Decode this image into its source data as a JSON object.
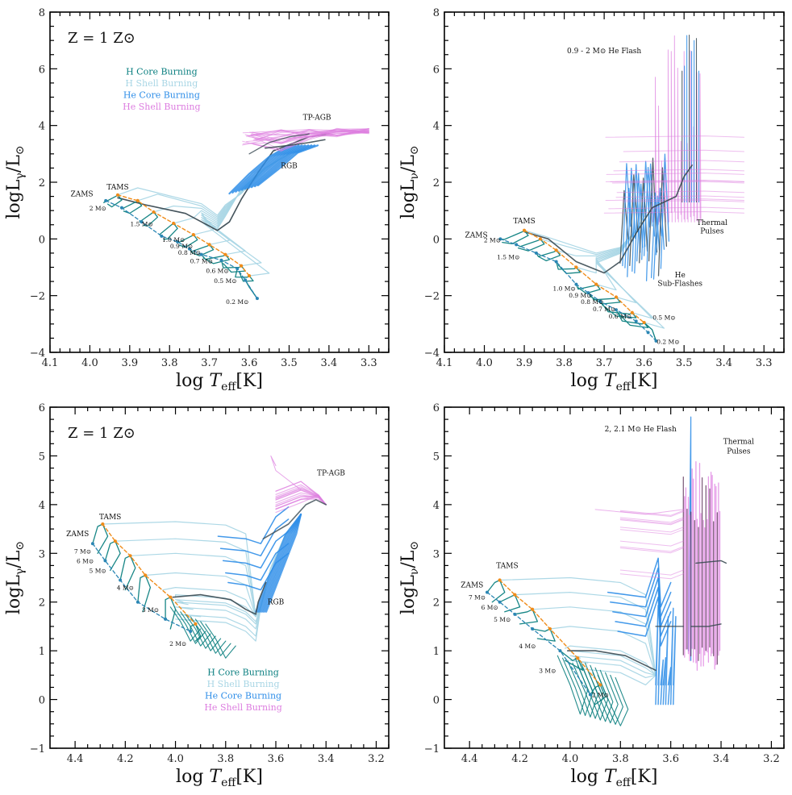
{
  "colors": {
    "h_core": "#0b7f80",
    "h_shell": "#a9d6e5",
    "he_core": "#2f8ee8",
    "he_shell": "#dd7ee0",
    "tams": "#f08c1a",
    "zams": "#2b86b4",
    "dark": "#3a4a52",
    "tpagb_dark": "#5a2d55"
  },
  "legend_items": [
    {
      "text": "H Core Burning",
      "color": "#0b7f80"
    },
    {
      "text": "H Shell Burning",
      "color": "#a9d6e5"
    },
    {
      "text": "He Core Burning",
      "color": "#2f8ee8"
    },
    {
      "text": "He Shell Burning",
      "color": "#dd7ee0"
    }
  ],
  "chart_data": [
    {
      "id": "tl",
      "type": "line",
      "xlabel": "log T_eff [K]",
      "ylabel": "log L_γ / L_⊙",
      "xlim": [
        4.1,
        3.25
      ],
      "ylim": [
        -4,
        8
      ],
      "xticks": [
        "4.1",
        "4.0",
        "3.9",
        "3.8",
        "3.7",
        "3.6",
        "3.5",
        "3.4",
        "3.3"
      ],
      "xtick_values": [
        4.1,
        4.0,
        3.9,
        3.8,
        3.7,
        3.6,
        3.5,
        3.4,
        3.3
      ],
      "yticks": [
        "−4",
        "−2",
        "0",
        "2",
        "4",
        "6",
        "8"
      ],
      "ytick_values": [
        -4,
        -2,
        0,
        2,
        4,
        6,
        8
      ],
      "metallicity": "Z = 1 Z⊙",
      "legend_position": [
        3.82,
        5.8
      ],
      "zams": [
        [
          3.96,
          1.35
        ],
        [
          3.92,
          1.1
        ],
        [
          3.87,
          0.6
        ],
        [
          3.82,
          0.1
        ],
        [
          3.78,
          -0.1
        ],
        [
          3.75,
          -0.35
        ],
        [
          3.72,
          -0.55
        ],
        [
          3.67,
          -0.75
        ],
        [
          3.63,
          -1.05
        ],
        [
          3.61,
          -1.45
        ],
        [
          3.58,
          -2.1
        ]
      ],
      "tams": [
        [
          3.93,
          1.55
        ],
        [
          3.88,
          1.35
        ],
        [
          3.84,
          0.95
        ],
        [
          3.79,
          0.55
        ],
        [
          3.74,
          0.15
        ],
        [
          3.7,
          -0.2
        ],
        [
          3.66,
          -0.55
        ],
        [
          3.62,
          -0.95
        ],
        [
          3.6,
          -1.3
        ]
      ],
      "annotations": [
        {
          "text": "ZAMS",
          "x": 4.02,
          "y": 1.5,
          "color": "#2b86b4",
          "size": 9
        },
        {
          "text": "TAMS",
          "x": 3.93,
          "y": 1.75,
          "color": "#f08c1a",
          "size": 9
        },
        {
          "text": "TP-AGB",
          "x": 3.43,
          "y": 4.2,
          "color": "#111",
          "size": 9
        },
        {
          "text": "RGB",
          "x": 3.5,
          "y": 2.5,
          "color": "#111",
          "size": 9
        }
      ],
      "masses": [
        {
          "text": "2 M⊙",
          "x": 3.98,
          "y": 1.0
        },
        {
          "text": "1.5 M⊙",
          "x": 3.87,
          "y": 0.45
        },
        {
          "text": "1.0 M⊙",
          "x": 3.79,
          "y": -0.1
        },
        {
          "text": "0.9 M⊙",
          "x": 3.77,
          "y": -0.33
        },
        {
          "text": "0.8 M⊙",
          "x": 3.75,
          "y": -0.56
        },
        {
          "text": "0.7 M⊙",
          "x": 3.72,
          "y": -0.86
        },
        {
          "text": "0.6 M⊙",
          "x": 3.68,
          "y": -1.2
        },
        {
          "text": "0.5 M⊙",
          "x": 3.66,
          "y": -1.55
        },
        {
          "text": "0.2 M⊙",
          "x": 3.63,
          "y": -2.3
        }
      ]
    },
    {
      "id": "tr",
      "type": "line",
      "xlabel": "log T_eff [K]",
      "ylabel": "log L_ν / L_⊙",
      "xlim": [
        4.1,
        3.25
      ],
      "ylim": [
        -4,
        8
      ],
      "xticks": [
        "4.1",
        "4.0",
        "3.9",
        "3.8",
        "3.7",
        "3.6",
        "3.5",
        "3.4",
        "3.3"
      ],
      "xtick_values": [
        4.1,
        4.0,
        3.9,
        3.8,
        3.7,
        3.6,
        3.5,
        3.4,
        3.3
      ],
      "yticks": [
        "−4",
        "−2",
        "0",
        "2",
        "4",
        "6",
        "8"
      ],
      "ytick_values": [
        -4,
        -2,
        0,
        2,
        4,
        6,
        8
      ],
      "zams": [
        [
          3.96,
          0.0
        ],
        [
          3.92,
          -0.2
        ],
        [
          3.87,
          -0.5
        ],
        [
          3.82,
          -0.8
        ],
        [
          3.77,
          -1.6
        ],
        [
          3.74,
          -1.9
        ],
        [
          3.71,
          -2.2
        ],
        [
          3.67,
          -2.5
        ],
        [
          3.62,
          -2.9
        ],
        [
          3.59,
          -3.3
        ],
        [
          3.57,
          -3.6
        ]
      ],
      "tams": [
        [
          3.9,
          0.3
        ],
        [
          3.86,
          0.0
        ],
        [
          3.82,
          -0.4
        ],
        [
          3.77,
          -1.0
        ],
        [
          3.72,
          -1.6
        ],
        [
          3.67,
          -2.05
        ],
        [
          3.63,
          -2.6
        ],
        [
          3.6,
          -2.95
        ]
      ],
      "annotations": [
        {
          "text": "ZAMS",
          "x": 4.02,
          "y": 0.05,
          "color": "#2b86b4",
          "size": 9
        },
        {
          "text": "TAMS",
          "x": 3.9,
          "y": 0.55,
          "color": "#f08c1a",
          "size": 9
        },
        {
          "text": "0.9 - 2 M⊙ He Flash",
          "x": 3.7,
          "y": 6.55,
          "color": "#111",
          "size": 8
        },
        {
          "text": "Thermal",
          "x": 3.43,
          "y": 0.5,
          "color": "#111",
          "size": 8
        },
        {
          "text": "Pulses",
          "x": 3.43,
          "y": 0.2,
          "color": "#111",
          "size": 8
        },
        {
          "text": "He",
          "x": 3.51,
          "y": -1.35,
          "color": "#111",
          "size": 8
        },
        {
          "text": "Sub-Flashes",
          "x": 3.51,
          "y": -1.65,
          "color": "#111",
          "size": 8
        }
      ],
      "masses": [
        {
          "text": "2 M⊙",
          "x": 3.98,
          "y": -0.12
        },
        {
          "text": "1.5 M⊙",
          "x": 3.94,
          "y": -0.72
        },
        {
          "text": "1.0 M⊙",
          "x": 3.8,
          "y": -1.83
        },
        {
          "text": "0.9 M⊙",
          "x": 3.76,
          "y": -2.07
        },
        {
          "text": "0.8 M⊙",
          "x": 3.73,
          "y": -2.3
        },
        {
          "text": "0.7 M⊙",
          "x": 3.7,
          "y": -2.55
        },
        {
          "text": "0.6 M⊙",
          "x": 3.66,
          "y": -2.8
        },
        {
          "text": "0.5 M⊙",
          "x": 3.55,
          "y": -2.85
        },
        {
          "text": "0.2 M⊙",
          "x": 3.54,
          "y": -3.7
        }
      ]
    },
    {
      "id": "bl",
      "type": "line",
      "xlabel": "log T_eff [K]",
      "ylabel": "log L_γ / L_⊙",
      "xlim": [
        4.5,
        3.15
      ],
      "ylim": [
        -1,
        6
      ],
      "xticks": [
        "4.4",
        "4.2",
        "4.0",
        "3.8",
        "3.6",
        "3.4",
        "3.2"
      ],
      "xtick_values": [
        4.4,
        4.2,
        4.0,
        3.8,
        3.6,
        3.4,
        3.2
      ],
      "yticks": [
        "−1",
        "0",
        "1",
        "2",
        "3",
        "4",
        "5",
        "6"
      ],
      "ytick_values": [
        -1,
        0,
        1,
        2,
        3,
        4,
        5,
        6
      ],
      "metallicity": "Z = 1 Z⊙",
      "legend_position": [
        3.73,
        0.5
      ],
      "zams": [
        [
          4.33,
          3.2
        ],
        [
          4.28,
          2.85
        ],
        [
          4.22,
          2.45
        ],
        [
          4.15,
          2.0
        ],
        [
          4.04,
          1.65
        ],
        [
          3.94,
          1.4
        ]
      ],
      "tams": [
        [
          4.29,
          3.6
        ],
        [
          4.24,
          3.25
        ],
        [
          4.18,
          2.95
        ],
        [
          4.12,
          2.55
        ],
        [
          4.02,
          2.1
        ],
        [
          3.92,
          1.55
        ]
      ],
      "annotations": [
        {
          "text": "ZAMS",
          "x": 4.39,
          "y": 3.35,
          "color": "#2b86b4",
          "size": 9
        },
        {
          "text": "TAMS",
          "x": 4.26,
          "y": 3.7,
          "color": "#f08c1a",
          "size": 9
        },
        {
          "text": "TP-AGB",
          "x": 3.38,
          "y": 4.6,
          "color": "#111",
          "size": 9
        },
        {
          "text": "RGB",
          "x": 3.6,
          "y": 1.95,
          "color": "#111",
          "size": 9
        }
      ],
      "masses": [
        {
          "text": "7 M⊙",
          "x": 4.37,
          "y": 3.0
        },
        {
          "text": "6 M⊙",
          "x": 4.36,
          "y": 2.8
        },
        {
          "text": "5 M⊙",
          "x": 4.31,
          "y": 2.6
        },
        {
          "text": "4 M⊙",
          "x": 4.2,
          "y": 2.25
        },
        {
          "text": "3 M⊙",
          "x": 4.1,
          "y": 1.8
        },
        {
          "text": "2 M⊙",
          "x": 3.99,
          "y": 1.1
        }
      ]
    },
    {
      "id": "br",
      "type": "line",
      "xlabel": "log T_eff [K]",
      "ylabel": "log L_ν / L_⊙",
      "xlim": [
        4.5,
        3.15
      ],
      "ylim": [
        -1,
        6
      ],
      "xticks": [
        "4.4",
        "4.2",
        "4.0",
        "3.8",
        "3.6",
        "3.4",
        "3.2"
      ],
      "xtick_values": [
        4.4,
        4.2,
        4.0,
        3.8,
        3.6,
        3.4,
        3.2
      ],
      "yticks": [
        "−1",
        "0",
        "1",
        "2",
        "3",
        "4",
        "5",
        "6"
      ],
      "ytick_values": [
        -1,
        0,
        1,
        2,
        3,
        4,
        5,
        6
      ],
      "zams": [
        [
          4.33,
          2.2
        ],
        [
          4.28,
          2.0
        ],
        [
          4.22,
          1.75
        ],
        [
          4.15,
          1.45
        ],
        [
          4.04,
          1.0
        ],
        [
          3.92,
          0.1
        ]
      ],
      "tams": [
        [
          4.28,
          2.45
        ],
        [
          4.22,
          2.15
        ],
        [
          4.15,
          1.85
        ],
        [
          4.08,
          1.45
        ],
        [
          3.97,
          0.85
        ],
        [
          3.88,
          0.3
        ]
      ],
      "annotations": [
        {
          "text": "ZAMS",
          "x": 4.39,
          "y": 2.3,
          "color": "#2b86b4",
          "size": 9
        },
        {
          "text": "TAMS",
          "x": 4.25,
          "y": 2.7,
          "color": "#f08c1a",
          "size": 9
        },
        {
          "text": "2, 2.1 M⊙ He Flash",
          "x": 3.72,
          "y": 5.5,
          "color": "#111",
          "size": 8
        },
        {
          "text": "Thermal",
          "x": 3.33,
          "y": 5.25,
          "color": "#111",
          "size": 8
        },
        {
          "text": "Pulses",
          "x": 3.33,
          "y": 5.05,
          "color": "#111",
          "size": 8
        }
      ],
      "masses": [
        {
          "text": "7 M⊙",
          "x": 4.37,
          "y": 2.05
        },
        {
          "text": "6 M⊙",
          "x": 4.32,
          "y": 1.85
        },
        {
          "text": "5 M⊙",
          "x": 4.27,
          "y": 1.6
        },
        {
          "text": "4 M⊙",
          "x": 4.17,
          "y": 1.05
        },
        {
          "text": "3 M⊙",
          "x": 4.09,
          "y": 0.55
        },
        {
          "text": "2 M⊙",
          "x": 3.88,
          "y": 0.05
        }
      ]
    }
  ]
}
